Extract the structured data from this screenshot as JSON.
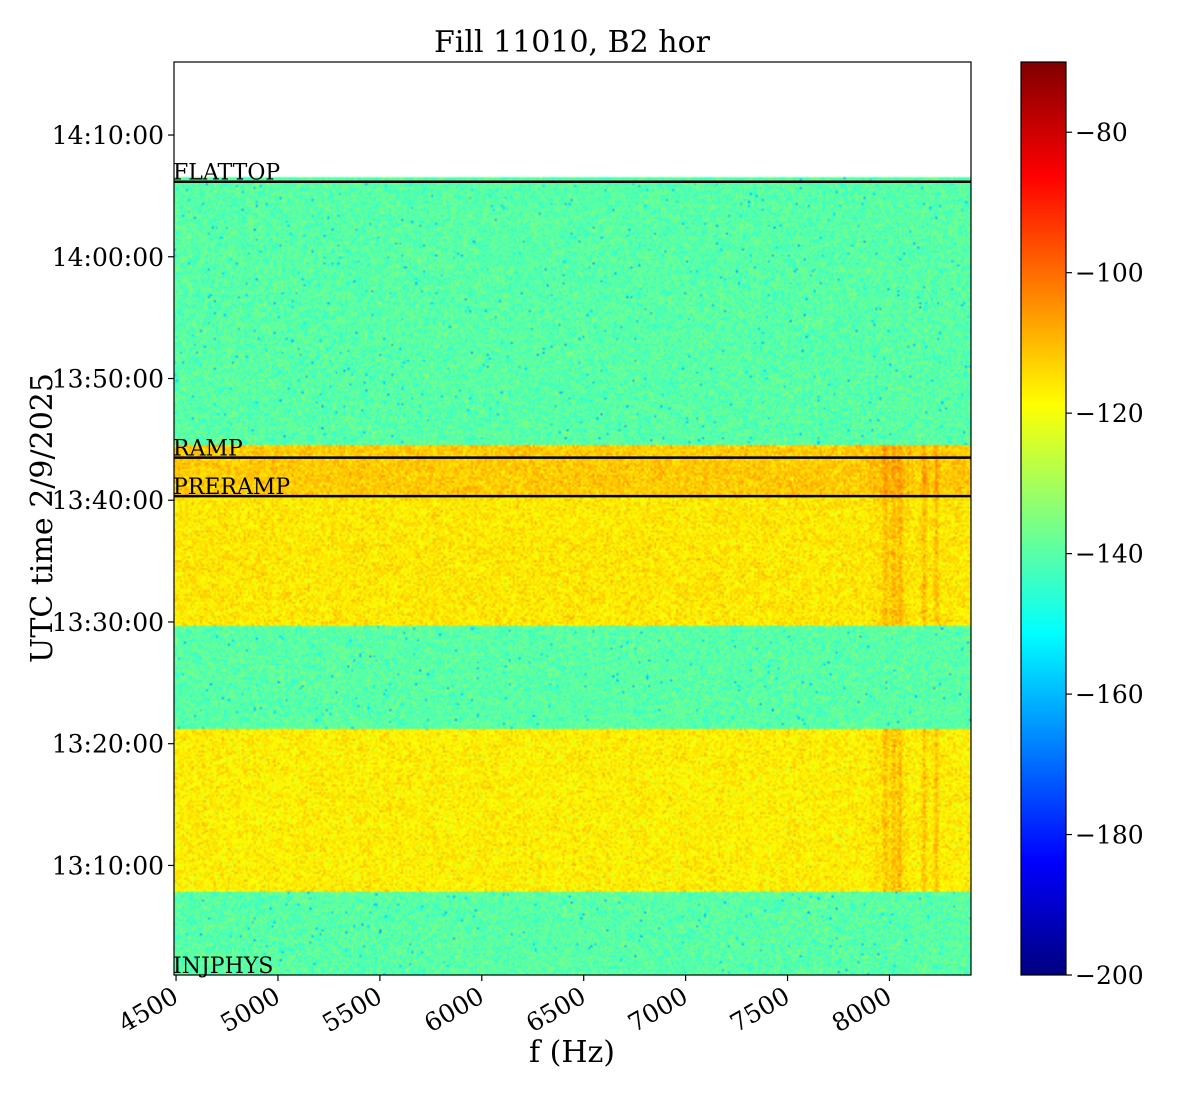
{
  "chart_data": {
    "type": "heatmap",
    "title": "Fill 11010, B2 hor",
    "xlabel": "f (Hz)",
    "ylabel": "UTC time 2/9/2025",
    "xlim": [
      4490,
      8400
    ],
    "ylim": [
      "13:01:00",
      "14:16:00"
    ],
    "x_ticks": [
      "4500",
      "5000",
      "5500",
      "6000",
      "6500",
      "7000",
      "7500",
      "8000"
    ],
    "y_ticks": [
      "13:10:00",
      "13:20:00",
      "13:30:00",
      "13:40:00",
      "13:50:00",
      "14:00:00",
      "14:10:00"
    ],
    "data_extent": {
      "y_start": "13:01:00",
      "y_end": "14:06:30"
    },
    "colorbar": {
      "colormap": "jet",
      "range": [
        -200,
        -70
      ],
      "ticks": [
        "−80",
        "−100",
        "−120",
        "−140",
        "−160",
        "−180",
        "−200"
      ]
    },
    "bands": [
      {
        "from": "13:01:00",
        "to": "13:07:50",
        "level": -140
      },
      {
        "from": "13:07:50",
        "to": "13:21:10",
        "level": -117
      },
      {
        "from": "13:21:10",
        "to": "13:29:40",
        "level": -140
      },
      {
        "from": "13:29:40",
        "to": "13:40:20",
        "level": -116
      },
      {
        "from": "13:40:20",
        "to": "13:44:30",
        "level": -112
      },
      {
        "from": "13:44:30",
        "to": "14:06:30",
        "level": -140
      }
    ],
    "line_features_hz": [
      7980,
      8020,
      8050,
      8170,
      8230
    ],
    "mode_lines": [
      {
        "time": "13:01:00",
        "label": "INJPHYS"
      },
      {
        "time": "13:40:20",
        "label": "PRERAMP"
      },
      {
        "time": "13:43:30",
        "label": "RAMP"
      },
      {
        "time": "14:06:10",
        "label": "FLATTOP"
      }
    ]
  }
}
